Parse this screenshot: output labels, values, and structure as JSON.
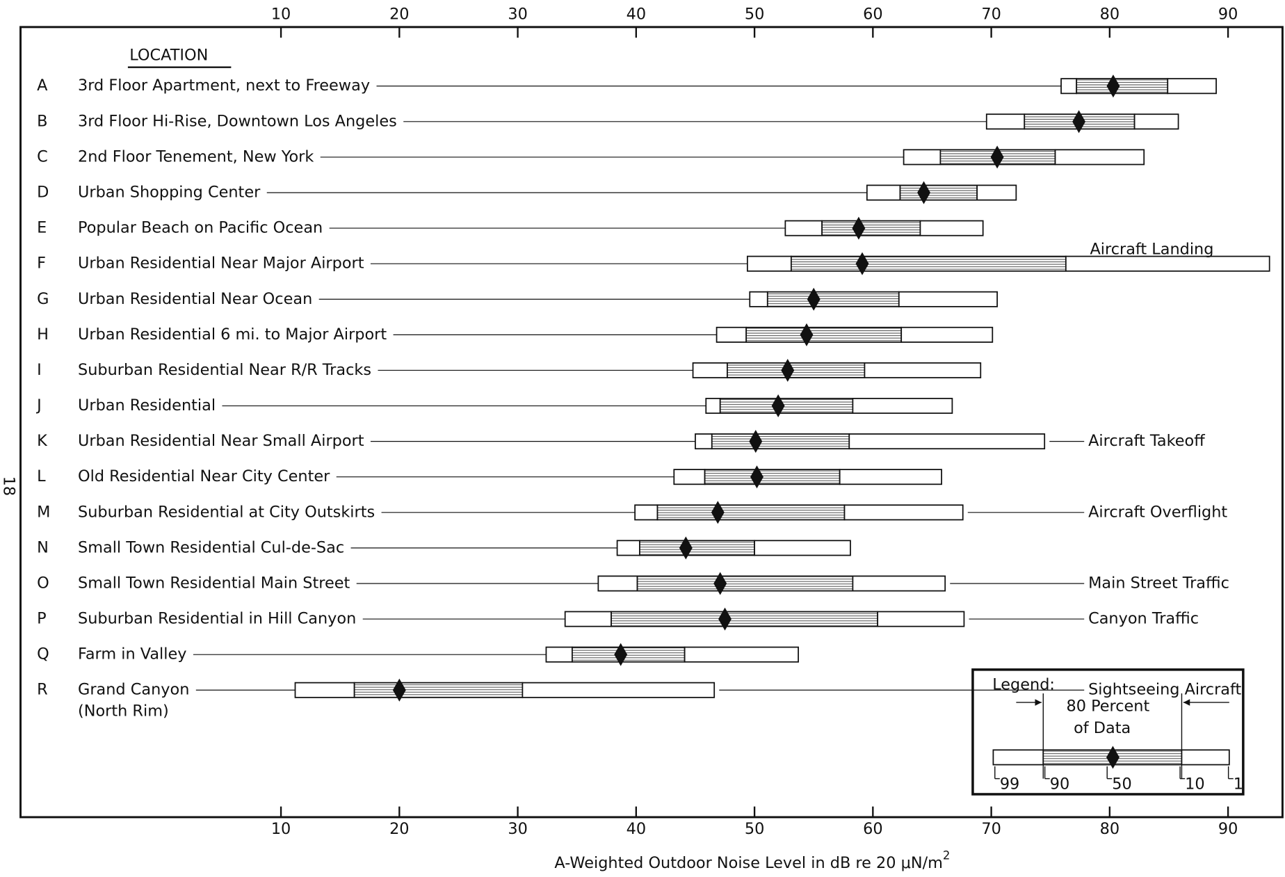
{
  "chart_data": {
    "type": "percentile-range",
    "header": "LOCATION",
    "page_number": "18",
    "xlabel": [
      "A-Weighted Outdoor Noise Level in dB re 20 μN/m",
      "2"
    ],
    "xlim": [
      -12,
      94.6
    ],
    "xticks": [
      10,
      20,
      30,
      40,
      50,
      60,
      70,
      80,
      90
    ],
    "rows": [
      {
        "letter": "A",
        "label": [
          "3rd Floor Apartment, next to Freeway"
        ],
        "values": [
          75.9,
          77.2,
          80.3,
          84.9,
          89.0
        ]
      },
      {
        "letter": "B",
        "label": [
          "3rd Floor Hi-Rise, Downtown Los Angeles"
        ],
        "values": [
          69.6,
          72.8,
          77.4,
          82.1,
          85.8
        ]
      },
      {
        "letter": "C",
        "label": [
          "2nd Floor Tenement, New York"
        ],
        "values": [
          62.6,
          65.7,
          70.5,
          75.4,
          82.9
        ]
      },
      {
        "letter": "D",
        "label": [
          "Urban Shopping Center"
        ],
        "values": [
          59.5,
          62.3,
          64.3,
          68.8,
          72.1
        ]
      },
      {
        "letter": "E",
        "label": [
          "Popular Beach on Pacific Ocean"
        ],
        "values": [
          52.6,
          55.7,
          58.8,
          64.0,
          69.3
        ]
      },
      {
        "letter": "F",
        "label": [
          "Urban Residential Near Major Airport"
        ],
        "values": [
          49.4,
          53.1,
          59.1,
          76.3,
          93.5
        ]
      },
      {
        "letter": "G",
        "label": [
          "Urban Residential Near Ocean"
        ],
        "values": [
          49.6,
          51.1,
          55.0,
          62.2,
          70.5
        ]
      },
      {
        "letter": "H",
        "label": [
          "Urban Residential 6 mi. to Major Airport"
        ],
        "values": [
          46.8,
          49.3,
          54.4,
          62.4,
          70.1
        ]
      },
      {
        "letter": "I",
        "label": [
          "Suburban Residential Near R/R Tracks"
        ],
        "values": [
          44.8,
          47.7,
          52.8,
          59.3,
          69.1
        ]
      },
      {
        "letter": "J",
        "label": [
          "Urban Residential"
        ],
        "values": [
          45.9,
          47.1,
          52.0,
          58.3,
          66.7
        ]
      },
      {
        "letter": "K",
        "label": [
          "Urban Residential Near Small Airport"
        ],
        "values": [
          45.0,
          46.4,
          50.1,
          58.0,
          74.5
        ]
      },
      {
        "letter": "L",
        "label": [
          "Old Residential Near City Center"
        ],
        "values": [
          43.2,
          45.8,
          50.2,
          57.2,
          65.8
        ]
      },
      {
        "letter": "M",
        "label": [
          "Suburban Residential at City Outskirts"
        ],
        "values": [
          39.9,
          41.8,
          46.9,
          57.6,
          67.6
        ]
      },
      {
        "letter": "N",
        "label": [
          "Small Town Residential Cul-de-Sac"
        ],
        "values": [
          38.4,
          40.3,
          44.2,
          50.0,
          58.1
        ]
      },
      {
        "letter": "O",
        "label": [
          "Small Town Residential Main Street"
        ],
        "values": [
          36.8,
          40.1,
          47.1,
          58.3,
          66.1
        ]
      },
      {
        "letter": "P",
        "label": [
          "Suburban Residential in Hill Canyon"
        ],
        "values": [
          34.0,
          37.9,
          47.5,
          60.4,
          67.7
        ]
      },
      {
        "letter": "Q",
        "label": [
          "Farm in Valley"
        ],
        "values": [
          32.4,
          34.6,
          38.7,
          44.1,
          53.7
        ]
      },
      {
        "letter": "R",
        "label": [
          "Grand Canyon",
          "(North Rim)"
        ],
        "values": [
          11.2,
          16.2,
          20.0,
          30.4,
          46.6
        ]
      }
    ],
    "annotations": [
      {
        "row": 5,
        "text": "Aircraft Landing"
      },
      {
        "row": 10,
        "text": "Aircraft Takeoff"
      },
      {
        "row": 12,
        "text": "Aircraft Overflight"
      },
      {
        "row": 14,
        "text": "Main Street Traffic"
      },
      {
        "row": 15,
        "text": "Canyon Traffic"
      },
      {
        "row": 17,
        "text": "Sightseeing Aircraft"
      }
    ],
    "legend": {
      "title": "Legend:",
      "caption": [
        "80 Percent",
        "of Data"
      ],
      "prefix": "L",
      "percentiles": [
        99,
        90,
        50,
        10,
        1
      ]
    }
  }
}
